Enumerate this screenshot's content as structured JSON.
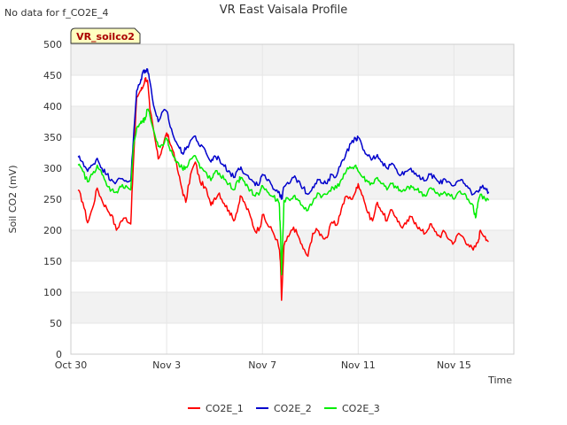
{
  "note": "No data for f_CO2E_4",
  "chart_data": {
    "type": "line",
    "title": "VR East Vaisala Profile",
    "xlabel": "Time",
    "ylabel": "Soil CO2 (mV)",
    "site_label": "VR_soilco2",
    "xlim_days": [
      0,
      18.5
    ],
    "ylim": [
      0,
      500
    ],
    "grid": true,
    "legend_position": "bottom",
    "y_ticks": [
      0,
      50,
      100,
      150,
      200,
      250,
      300,
      350,
      400,
      450,
      500
    ],
    "x_ticks": [
      {
        "day": 0,
        "label": "Oct 30"
      },
      {
        "day": 4,
        "label": "Nov 3"
      },
      {
        "day": 8,
        "label": "Nov 7"
      },
      {
        "day": 12,
        "label": "Nov 11"
      },
      {
        "day": 16,
        "label": "Nov 15"
      }
    ],
    "series": [
      {
        "name": "CO2E_1",
        "color": "#ff0000",
        "points": [
          [
            0.3,
            265
          ],
          [
            0.5,
            245
          ],
          [
            0.7,
            212
          ],
          [
            0.9,
            235
          ],
          [
            1.1,
            268
          ],
          [
            1.3,
            248
          ],
          [
            1.5,
            235
          ],
          [
            1.7,
            225
          ],
          [
            1.9,
            200
          ],
          [
            2.1,
            215
          ],
          [
            2.3,
            220
          ],
          [
            2.5,
            210
          ],
          [
            2.6,
            300
          ],
          [
            2.75,
            415
          ],
          [
            2.9,
            425
          ],
          [
            3.0,
            430
          ],
          [
            3.1,
            445
          ],
          [
            3.2,
            442
          ],
          [
            3.3,
            395
          ],
          [
            3.5,
            350
          ],
          [
            3.65,
            315
          ],
          [
            3.8,
            330
          ],
          [
            4.0,
            357
          ],
          [
            4.1,
            345
          ],
          [
            4.3,
            325
          ],
          [
            4.5,
            290
          ],
          [
            4.65,
            265
          ],
          [
            4.8,
            245
          ],
          [
            5.0,
            290
          ],
          [
            5.2,
            310
          ],
          [
            5.4,
            278
          ],
          [
            5.6,
            270
          ],
          [
            5.85,
            240
          ],
          [
            6.0,
            252
          ],
          [
            6.2,
            260
          ],
          [
            6.4,
            243
          ],
          [
            6.6,
            232
          ],
          [
            6.8,
            215
          ],
          [
            7.0,
            240
          ],
          [
            7.1,
            255
          ],
          [
            7.3,
            240
          ],
          [
            7.5,
            222
          ],
          [
            7.7,
            198
          ],
          [
            7.9,
            205
          ],
          [
            8.0,
            225
          ],
          [
            8.2,
            210
          ],
          [
            8.4,
            200
          ],
          [
            8.6,
            185
          ],
          [
            8.7,
            170
          ],
          [
            8.75,
            150
          ],
          [
            8.8,
            87
          ],
          [
            8.9,
            175
          ],
          [
            9.1,
            190
          ],
          [
            9.3,
            205
          ],
          [
            9.5,
            190
          ],
          [
            9.7,
            170
          ],
          [
            9.9,
            158
          ],
          [
            10.1,
            195
          ],
          [
            10.3,
            200
          ],
          [
            10.5,
            190
          ],
          [
            10.7,
            188
          ],
          [
            10.9,
            213
          ],
          [
            11.1,
            208
          ],
          [
            11.3,
            235
          ],
          [
            11.5,
            255
          ],
          [
            11.7,
            250
          ],
          [
            11.9,
            263
          ],
          [
            12.0,
            275
          ],
          [
            12.2,
            255
          ],
          [
            12.4,
            228
          ],
          [
            12.6,
            215
          ],
          [
            12.8,
            245
          ],
          [
            13.0,
            230
          ],
          [
            13.2,
            215
          ],
          [
            13.4,
            233
          ],
          [
            13.6,
            220
          ],
          [
            13.8,
            205
          ],
          [
            14.0,
            210
          ],
          [
            14.2,
            222
          ],
          [
            14.4,
            212
          ],
          [
            14.6,
            200
          ],
          [
            14.8,
            195
          ],
          [
            15.0,
            210
          ],
          [
            15.2,
            198
          ],
          [
            15.4,
            190
          ],
          [
            15.6,
            198
          ],
          [
            15.8,
            185
          ],
          [
            16.0,
            180
          ],
          [
            16.2,
            195
          ],
          [
            16.4,
            188
          ],
          [
            16.6,
            177
          ],
          [
            16.8,
            168
          ],
          [
            17.0,
            180
          ],
          [
            17.1,
            200
          ],
          [
            17.3,
            190
          ],
          [
            17.45,
            182
          ]
        ]
      },
      {
        "name": "CO2E_2",
        "color": "#0000cc",
        "points": [
          [
            0.3,
            318
          ],
          [
            0.5,
            310
          ],
          [
            0.7,
            295
          ],
          [
            0.9,
            305
          ],
          [
            1.1,
            316
          ],
          [
            1.3,
            300
          ],
          [
            1.5,
            290
          ],
          [
            1.7,
            282
          ],
          [
            1.9,
            278
          ],
          [
            2.1,
            283
          ],
          [
            2.3,
            280
          ],
          [
            2.5,
            280
          ],
          [
            2.6,
            340
          ],
          [
            2.75,
            425
          ],
          [
            2.9,
            438
          ],
          [
            3.0,
            455
          ],
          [
            3.1,
            458
          ],
          [
            3.2,
            460
          ],
          [
            3.3,
            440
          ],
          [
            3.5,
            395
          ],
          [
            3.65,
            375
          ],
          [
            3.8,
            390
          ],
          [
            4.0,
            392
          ],
          [
            4.1,
            375
          ],
          [
            4.3,
            350
          ],
          [
            4.5,
            335
          ],
          [
            4.65,
            325
          ],
          [
            4.8,
            330
          ],
          [
            5.0,
            345
          ],
          [
            5.2,
            352
          ],
          [
            5.4,
            335
          ],
          [
            5.6,
            330
          ],
          [
            5.85,
            310
          ],
          [
            6.0,
            320
          ],
          [
            6.2,
            315
          ],
          [
            6.4,
            303
          ],
          [
            6.6,
            296
          ],
          [
            6.8,
            285
          ],
          [
            7.0,
            300
          ],
          [
            7.1,
            302
          ],
          [
            7.3,
            290
          ],
          [
            7.5,
            282
          ],
          [
            7.7,
            272
          ],
          [
            7.9,
            278
          ],
          [
            8.0,
            290
          ],
          [
            8.2,
            280
          ],
          [
            8.4,
            272
          ],
          [
            8.6,
            265
          ],
          [
            8.7,
            262
          ],
          [
            8.75,
            255
          ],
          [
            8.8,
            250
          ],
          [
            8.9,
            270
          ],
          [
            9.1,
            275
          ],
          [
            9.3,
            285
          ],
          [
            9.5,
            280
          ],
          [
            9.7,
            268
          ],
          [
            9.9,
            258
          ],
          [
            10.1,
            270
          ],
          [
            10.3,
            282
          ],
          [
            10.5,
            276
          ],
          [
            10.7,
            275
          ],
          [
            10.9,
            290
          ],
          [
            11.1,
            288
          ],
          [
            11.3,
            310
          ],
          [
            11.5,
            325
          ],
          [
            11.7,
            340
          ],
          [
            11.9,
            348
          ],
          [
            12.0,
            350
          ],
          [
            12.2,
            330
          ],
          [
            12.4,
            320
          ],
          [
            12.6,
            315
          ],
          [
            12.8,
            322
          ],
          [
            13.0,
            310
          ],
          [
            13.2,
            300
          ],
          [
            13.4,
            308
          ],
          [
            13.6,
            298
          ],
          [
            13.8,
            290
          ],
          [
            14.0,
            295
          ],
          [
            14.2,
            300
          ],
          [
            14.4,
            292
          ],
          [
            14.6,
            282
          ],
          [
            14.8,
            280
          ],
          [
            15.0,
            290
          ],
          [
            15.2,
            285
          ],
          [
            15.4,
            275
          ],
          [
            15.6,
            283
          ],
          [
            15.8,
            278
          ],
          [
            16.0,
            272
          ],
          [
            16.2,
            280
          ],
          [
            16.4,
            276
          ],
          [
            16.6,
            268
          ],
          [
            16.8,
            258
          ],
          [
            17.0,
            262
          ],
          [
            17.1,
            270
          ],
          [
            17.3,
            268
          ],
          [
            17.45,
            262
          ]
        ]
      },
      {
        "name": "CO2E_3",
        "color": "#00ee00",
        "points": [
          [
            0.3,
            305
          ],
          [
            0.5,
            295
          ],
          [
            0.7,
            278
          ],
          [
            0.9,
            290
          ],
          [
            1.1,
            305
          ],
          [
            1.3,
            290
          ],
          [
            1.5,
            272
          ],
          [
            1.7,
            265
          ],
          [
            1.9,
            262
          ],
          [
            2.1,
            270
          ],
          [
            2.3,
            272
          ],
          [
            2.5,
            265
          ],
          [
            2.6,
            330
          ],
          [
            2.75,
            365
          ],
          [
            2.9,
            372
          ],
          [
            3.0,
            375
          ],
          [
            3.1,
            378
          ],
          [
            3.2,
            395
          ],
          [
            3.3,
            385
          ],
          [
            3.5,
            355
          ],
          [
            3.65,
            335
          ],
          [
            3.8,
            338
          ],
          [
            4.0,
            348
          ],
          [
            4.1,
            335
          ],
          [
            4.3,
            318
          ],
          [
            4.5,
            308
          ],
          [
            4.65,
            300
          ],
          [
            4.8,
            302
          ],
          [
            5.0,
            315
          ],
          [
            5.2,
            320
          ],
          [
            5.4,
            300
          ],
          [
            5.6,
            295
          ],
          [
            5.85,
            280
          ],
          [
            6.0,
            292
          ],
          [
            6.2,
            292
          ],
          [
            6.4,
            282
          ],
          [
            6.6,
            275
          ],
          [
            6.8,
            265
          ],
          [
            7.0,
            280
          ],
          [
            7.1,
            285
          ],
          [
            7.3,
            272
          ],
          [
            7.5,
            265
          ],
          [
            7.7,
            255
          ],
          [
            7.9,
            262
          ],
          [
            8.0,
            272
          ],
          [
            8.2,
            262
          ],
          [
            8.4,
            255
          ],
          [
            8.6,
            248
          ],
          [
            8.7,
            244
          ],
          [
            8.75,
            200
          ],
          [
            8.8,
            128
          ],
          [
            8.9,
            248
          ],
          [
            9.1,
            250
          ],
          [
            9.3,
            255
          ],
          [
            9.5,
            248
          ],
          [
            9.7,
            238
          ],
          [
            9.9,
            232
          ],
          [
            10.1,
            245
          ],
          [
            10.3,
            260
          ],
          [
            10.5,
            255
          ],
          [
            10.7,
            258
          ],
          [
            10.9,
            270
          ],
          [
            11.1,
            268
          ],
          [
            11.3,
            282
          ],
          [
            11.5,
            295
          ],
          [
            11.7,
            300
          ],
          [
            11.9,
            305
          ],
          [
            12.0,
            295
          ],
          [
            12.2,
            285
          ],
          [
            12.4,
            278
          ],
          [
            12.6,
            275
          ],
          [
            12.8,
            285
          ],
          [
            13.0,
            275
          ],
          [
            13.2,
            265
          ],
          [
            13.4,
            275
          ],
          [
            13.6,
            268
          ],
          [
            13.8,
            262
          ],
          [
            14.0,
            266
          ],
          [
            14.2,
            272
          ],
          [
            14.4,
            266
          ],
          [
            14.6,
            262
          ],
          [
            14.8,
            255
          ],
          [
            15.0,
            268
          ],
          [
            15.2,
            262
          ],
          [
            15.4,
            255
          ],
          [
            15.6,
            262
          ],
          [
            15.8,
            258
          ],
          [
            16.0,
            250
          ],
          [
            16.2,
            262
          ],
          [
            16.4,
            258
          ],
          [
            16.6,
            250
          ],
          [
            16.8,
            240
          ],
          [
            16.9,
            220
          ],
          [
            17.0,
            245
          ],
          [
            17.1,
            258
          ],
          [
            17.3,
            250
          ],
          [
            17.45,
            248
          ]
        ]
      }
    ]
  }
}
